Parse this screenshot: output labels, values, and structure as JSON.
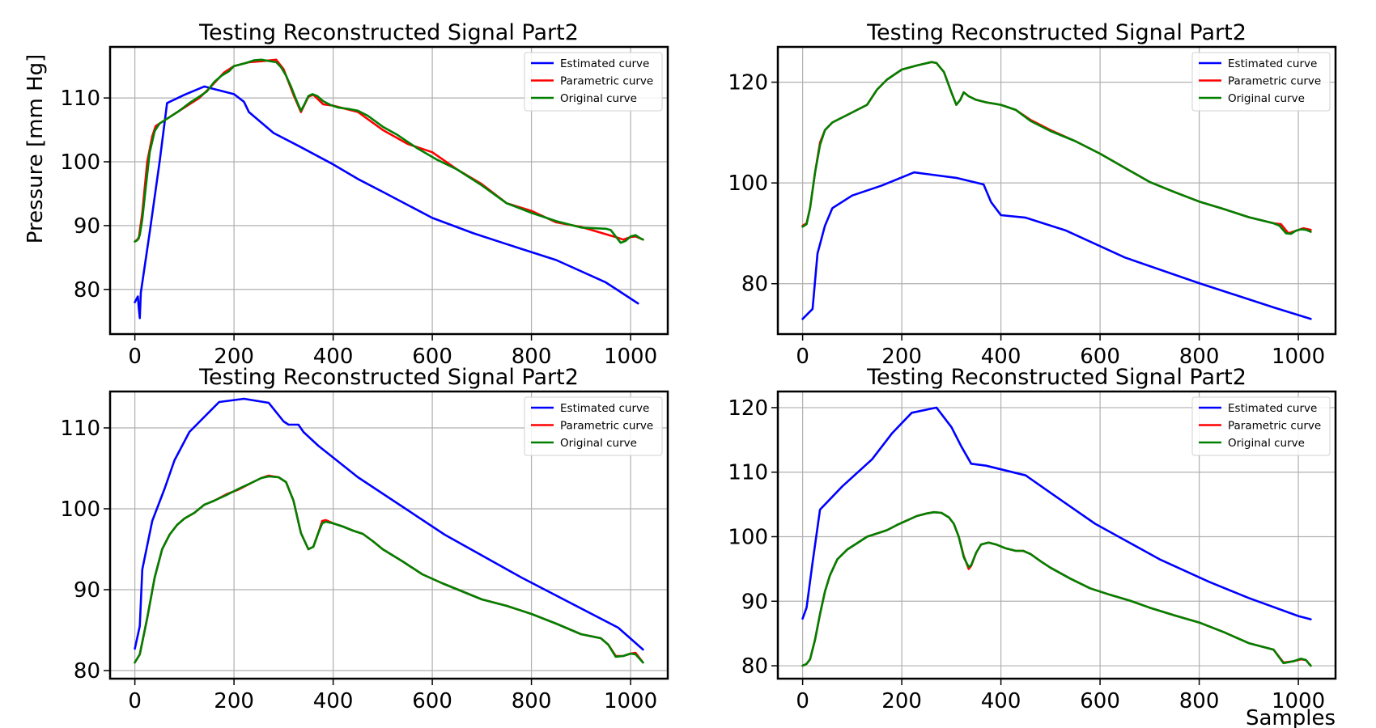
{
  "figure": {
    "ylabel": "Pressure [mm Hg]",
    "xlabel": "Samples"
  },
  "colors": {
    "estimated": "#0000ff",
    "parametric": "#ff0000",
    "original": "#008000",
    "grid": "#b0b0b0",
    "axes": "#000000"
  },
  "chart_data": [
    {
      "type": "line",
      "title": "Testing Reconstructed Signal Part2",
      "xlabel": "",
      "ylabel": "Pressure [mm Hg]",
      "xlim": [
        -50,
        1075
      ],
      "ylim": [
        73,
        118
      ],
      "xticks": [
        0,
        200,
        400,
        600,
        800,
        1000
      ],
      "yticks": [
        80,
        90,
        100,
        110
      ],
      "grid": true,
      "legend": "upper right",
      "series": [
        {
          "name": "Estimated curve",
          "color": "#0000ff",
          "x": [
            0,
            6,
            8,
            10,
            12,
            30,
            50,
            65,
            100,
            140,
            160,
            200,
            220,
            230,
            280,
            330,
            400,
            450,
            500,
            600,
            683,
            750,
            850,
            950,
            1015
          ],
          "y": [
            78,
            78.9,
            77,
            75.5,
            79.5,
            89,
            100,
            109.2,
            110.5,
            111.8,
            111.4,
            110.6,
            109.4,
            107.8,
            104.5,
            102.5,
            99.6,
            97.3,
            95.3,
            91.2,
            88.8,
            87.1,
            84.6,
            81.1,
            77.8
          ]
        },
        {
          "name": "Parametric curve",
          "color": "#ff0000",
          "x": [
            0,
            8,
            15,
            25,
            35,
            42,
            60,
            90,
            130,
            150,
            180,
            200,
            230,
            260,
            285,
            300,
            320,
            335,
            350,
            360,
            380,
            400,
            450,
            500,
            550,
            600,
            650,
            700,
            750,
            800,
            850,
            900,
            970,
            985,
            1000,
            1010,
            1025
          ],
          "y": [
            87.5,
            88,
            92,
            100,
            104,
            105.6,
            106.5,
            108,
            110,
            111.5,
            114,
            115,
            115.6,
            115.8,
            116,
            114.5,
            110.5,
            107.8,
            110.2,
            110.5,
            109,
            108.8,
            107.8,
            105,
            102.8,
            101.5,
            98.8,
            96.5,
            93.5,
            92.3,
            90.5,
            89.8,
            88.2,
            87.8,
            88.2,
            88.3,
            87.8
          ]
        },
        {
          "name": "Original curve",
          "color": "#008000",
          "x": [
            0,
            5,
            10,
            15,
            22,
            30,
            40,
            50,
            70,
            90,
            110,
            130,
            145,
            160,
            175,
            190,
            200,
            210,
            225,
            240,
            255,
            270,
            285,
            295,
            305,
            315,
            325,
            335,
            342,
            350,
            358,
            368,
            380,
            395,
            410,
            430,
            450,
            470,
            500,
            530,
            570,
            610,
            650,
            700,
            750,
            800,
            850,
            900,
            950,
            960,
            970,
            980,
            990,
            1000,
            1010,
            1020,
            1025
          ],
          "y": [
            87.5,
            87.7,
            88.5,
            91,
            96,
            101.5,
            104.8,
            106,
            107,
            108,
            109.2,
            110.2,
            111,
            112.5,
            113.5,
            114.2,
            115,
            115.2,
            115.5,
            115.9,
            116,
            115.8,
            115.6,
            114.8,
            113.5,
            111.8,
            109.8,
            108,
            109,
            110.3,
            110.6,
            110.3,
            109.5,
            108.9,
            108.5,
            108.3,
            108,
            107.2,
            105.5,
            104.2,
            102.1,
            100.3,
            98.8,
            96.3,
            93.5,
            92,
            90.7,
            89.7,
            89.5,
            89.3,
            88.3,
            87.3,
            87.6,
            88.3,
            88.5,
            88,
            87.8
          ]
        }
      ]
    },
    {
      "type": "line",
      "title": "Testing Reconstructed Signal Part2",
      "xlabel": "",
      "ylabel": "",
      "xlim": [
        -50,
        1075
      ],
      "ylim": [
        70,
        127
      ],
      "xticks": [
        0,
        200,
        400,
        600,
        800,
        1000
      ],
      "yticks": [
        80,
        100,
        120
      ],
      "grid": true,
      "legend": "upper right",
      "series": [
        {
          "name": "Estimated curve",
          "color": "#0000ff",
          "x": [
            0,
            20,
            30,
            45,
            60,
            100,
            160,
            225,
            310,
            365,
            380,
            400,
            450,
            530,
            650,
            800,
            950,
            1025
          ],
          "y": [
            73,
            75,
            86,
            91.5,
            95,
            97.5,
            99.5,
            102.1,
            101,
            99.7,
            96.2,
            93.6,
            93.1,
            90.6,
            85.2,
            80.1,
            75.3,
            73
          ]
        },
        {
          "name": "Parametric curve",
          "color": "#ff0000",
          "x": [
            0,
            8,
            15,
            25,
            35,
            45,
            60,
            90,
            130,
            150,
            170,
            200,
            230,
            260,
            270,
            285,
            300,
            310,
            318,
            325,
            335,
            350,
            370,
            400,
            430,
            460,
            500,
            550,
            600,
            650,
            700,
            750,
            800,
            850,
            900,
            950,
            965,
            980,
            995,
            1010,
            1025
          ],
          "y": [
            91.5,
            92,
            95,
            102,
            108,
            110.5,
            112,
            113.5,
            115.5,
            118.5,
            120.5,
            122.5,
            123.3,
            124,
            123.8,
            122,
            118,
            115.5,
            116.5,
            118,
            117.2,
            116.5,
            116,
            115.5,
            114.5,
            112.5,
            110.5,
            108.3,
            105.8,
            103,
            100.2,
            98.2,
            96.3,
            94.8,
            93.2,
            92,
            91.8,
            90,
            90.5,
            91,
            90.7
          ]
        },
        {
          "name": "Original curve",
          "color": "#008000",
          "x": [
            0,
            8,
            15,
            25,
            35,
            45,
            60,
            90,
            130,
            150,
            170,
            200,
            230,
            260,
            270,
            285,
            300,
            310,
            318,
            325,
            335,
            350,
            370,
            400,
            430,
            460,
            500,
            550,
            600,
            650,
            700,
            750,
            800,
            850,
            900,
            950,
            962,
            975,
            985,
            995,
            1005,
            1015,
            1025
          ],
          "y": [
            91.3,
            91.8,
            95,
            102,
            107.5,
            110.5,
            112,
            113.5,
            115.5,
            118.5,
            120.5,
            122.5,
            123.3,
            124,
            123.8,
            122,
            118,
            115.5,
            116.5,
            118,
            117.2,
            116.5,
            116,
            115.5,
            114.5,
            112.3,
            110.3,
            108.3,
            105.8,
            103,
            100.2,
            98.2,
            96.3,
            94.8,
            93.2,
            92,
            91.5,
            90,
            89.9,
            90.5,
            90.8,
            90.7,
            90.3
          ]
        }
      ]
    },
    {
      "type": "line",
      "title": "Testing Reconstructed Signal Part2",
      "xlabel": "",
      "ylabel": "",
      "xlim": [
        -50,
        1075
      ],
      "ylim": [
        79,
        114.5
      ],
      "xticks": [
        0,
        200,
        400,
        600,
        800,
        1000
      ],
      "yticks": [
        80,
        90,
        100,
        110
      ],
      "grid": true,
      "legend": "upper right",
      "series": [
        {
          "name": "Estimated curve",
          "color": "#0000ff",
          "x": [
            0,
            10,
            15,
            35,
            60,
            80,
            110,
            170,
            220,
            270,
            300,
            310,
            330,
            340,
            370,
            450,
            625,
            780,
            975,
            1025
          ],
          "y": [
            82.7,
            85.5,
            92.5,
            98.5,
            102.5,
            106,
            109.5,
            113.2,
            113.6,
            113.1,
            110.8,
            110.4,
            110.4,
            109.5,
            107.8,
            103.9,
            96.8,
            91.5,
            85.3,
            82.6
          ]
        },
        {
          "name": "Parametric curve",
          "color": "#ff0000",
          "x": [
            0,
            10,
            25,
            40,
            55,
            70,
            85,
            100,
            120,
            140,
            160,
            185,
            210,
            235,
            255,
            270,
            290,
            305,
            320,
            335,
            350,
            360,
            370,
            378,
            385,
            400,
            420,
            440,
            460,
            480,
            500,
            540,
            580,
            620,
            660,
            700,
            750,
            800,
            850,
            900,
            940,
            955,
            970,
            985,
            1000,
            1010,
            1025
          ],
          "y": [
            81,
            82,
            86.5,
            91.5,
            95,
            96.8,
            98,
            98.8,
            99.5,
            100.5,
            101,
            101.8,
            102.4,
            103.2,
            103.8,
            104.1,
            103.9,
            103.3,
            101,
            97,
            95,
            95.3,
            97,
            98.5,
            98.6,
            98.2,
            97.8,
            97.3,
            96.9,
            96,
            95,
            93.5,
            91.9,
            90.8,
            89.8,
            88.8,
            88,
            87,
            85.8,
            84.5,
            84,
            83.2,
            81.8,
            81.8,
            82.1,
            82.2,
            81
          ]
        },
        {
          "name": "Original curve",
          "color": "#008000",
          "x": [
            0,
            10,
            25,
            40,
            55,
            70,
            85,
            100,
            120,
            140,
            160,
            185,
            210,
            235,
            255,
            270,
            290,
            305,
            320,
            335,
            350,
            360,
            370,
            378,
            385,
            400,
            420,
            440,
            460,
            480,
            500,
            540,
            580,
            620,
            660,
            700,
            750,
            800,
            850,
            900,
            940,
            955,
            970,
            985,
            1000,
            1010,
            1025
          ],
          "y": [
            81,
            82,
            86.5,
            91.5,
            95,
            96.8,
            98,
            98.8,
            99.5,
            100.5,
            101,
            101.7,
            102.5,
            103.2,
            103.8,
            104,
            103.9,
            103.3,
            101,
            97,
            95,
            95.3,
            97,
            98.2,
            98.4,
            98.2,
            97.8,
            97.3,
            96.9,
            96,
            95,
            93.5,
            91.9,
            90.8,
            89.8,
            88.8,
            88,
            87,
            85.8,
            84.5,
            84,
            83.2,
            81.7,
            81.8,
            82.1,
            82,
            81
          ]
        }
      ]
    },
    {
      "type": "line",
      "title": "Testing Reconstructed Signal Part2",
      "xlabel": "Samples",
      "ylabel": "",
      "xlim": [
        -50,
        1075
      ],
      "ylim": [
        78,
        122.5
      ],
      "xticks": [
        0,
        200,
        400,
        600,
        800,
        1000
      ],
      "yticks": [
        80,
        90,
        100,
        110,
        120
      ],
      "grid": true,
      "legend": "upper right",
      "series": [
        {
          "name": "Estimated curve",
          "color": "#0000ff",
          "x": [
            0,
            8,
            20,
            35,
            80,
            140,
            180,
            220,
            270,
            300,
            320,
            340,
            370,
            450,
            500,
            590,
            720,
            820,
            900,
            1000,
            1025
          ],
          "y": [
            87.3,
            89,
            96,
            104.2,
            107.8,
            112,
            116,
            119.2,
            120,
            117,
            114,
            111.3,
            111,
            109.5,
            106.8,
            102,
            96.5,
            93,
            90.5,
            87.7,
            87.2
          ]
        },
        {
          "name": "Parametric curve",
          "color": "#ff0000",
          "x": [
            0,
            8,
            15,
            25,
            35,
            45,
            55,
            70,
            90,
            110,
            130,
            150,
            170,
            190,
            210,
            230,
            250,
            265,
            280,
            295,
            305,
            315,
            325,
            335,
            340,
            350,
            360,
            375,
            390,
            410,
            430,
            445,
            460,
            480,
            500,
            540,
            580,
            620,
            660,
            700,
            750,
            800,
            850,
            900,
            950,
            970,
            990,
            1005,
            1015,
            1025
          ],
          "y": [
            80,
            80.3,
            81,
            84,
            88,
            91.5,
            94,
            96.5,
            98,
            99,
            100,
            100.5,
            101,
            101.8,
            102.5,
            103.2,
            103.6,
            103.8,
            103.7,
            103,
            102,
            100,
            97,
            95,
            95.5,
            97.5,
            98.8,
            99.1,
            98.8,
            98.2,
            97.8,
            97.8,
            97.3,
            96.2,
            95.2,
            93.5,
            92,
            91,
            90.1,
            89,
            87.8,
            86.7,
            85.2,
            83.5,
            82.5,
            80.5,
            80.7,
            81,
            80.9,
            80
          ]
        },
        {
          "name": "Original curve",
          "color": "#008000",
          "x": [
            0,
            8,
            15,
            25,
            35,
            45,
            55,
            70,
            90,
            110,
            130,
            150,
            170,
            190,
            210,
            230,
            250,
            265,
            280,
            295,
            305,
            315,
            325,
            335,
            340,
            350,
            360,
            375,
            390,
            410,
            430,
            445,
            460,
            480,
            500,
            540,
            580,
            620,
            660,
            700,
            750,
            800,
            850,
            900,
            950,
            970,
            990,
            1005,
            1015,
            1025
          ],
          "y": [
            80,
            80.3,
            81,
            84,
            88,
            91.5,
            94,
            96.5,
            98,
            99,
            100,
            100.5,
            101,
            101.8,
            102.5,
            103.2,
            103.6,
            103.8,
            103.7,
            103,
            102,
            100,
            96.8,
            95.3,
            95.6,
            97.5,
            98.8,
            99.1,
            98.8,
            98.2,
            97.8,
            97.8,
            97.3,
            96.2,
            95.2,
            93.5,
            92,
            91,
            90.1,
            89,
            87.8,
            86.7,
            85.2,
            83.5,
            82.5,
            80.4,
            80.7,
            81.1,
            80.9,
            80
          ]
        }
      ]
    }
  ]
}
